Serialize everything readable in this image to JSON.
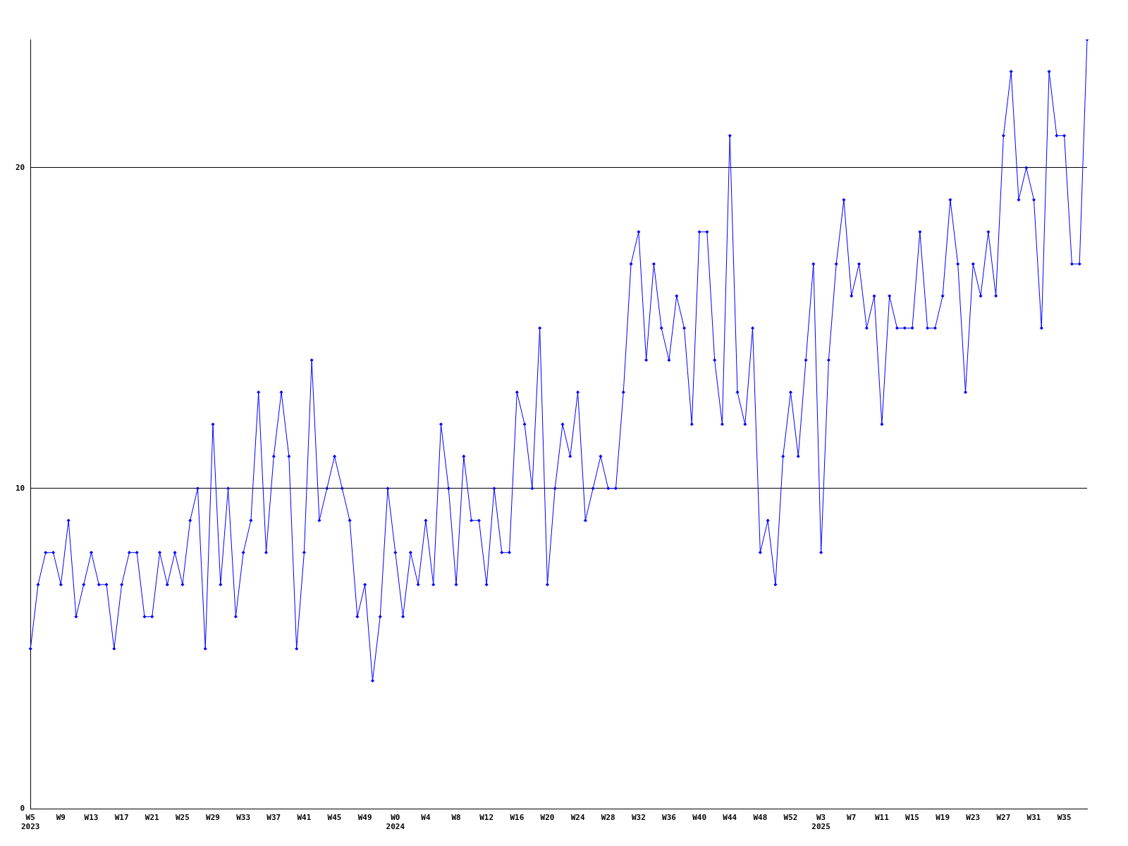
{
  "chart_data": {
    "type": "line",
    "categories": [
      "W5\n2023",
      null,
      null,
      null,
      "W9",
      null,
      null,
      null,
      "W13",
      null,
      null,
      null,
      "W17",
      null,
      null,
      null,
      "W21",
      null,
      null,
      null,
      "W25",
      null,
      null,
      null,
      "W29",
      null,
      null,
      null,
      "W33",
      null,
      null,
      null,
      "W37",
      null,
      null,
      null,
      "W41",
      null,
      null,
      null,
      "W45",
      null,
      null,
      null,
      "W49",
      null,
      null,
      null,
      "W0\n2024",
      null,
      null,
      null,
      "W4",
      null,
      null,
      null,
      "W8",
      null,
      null,
      null,
      "W12",
      null,
      null,
      null,
      "W16",
      null,
      null,
      null,
      "W20",
      null,
      null,
      null,
      "W24",
      null,
      null,
      null,
      "W28",
      null,
      null,
      null,
      "W32",
      null,
      null,
      null,
      "W36",
      null,
      null,
      null,
      "W40",
      null,
      null,
      null,
      "W44",
      null,
      null,
      null,
      "W48",
      null,
      null,
      null,
      "W52",
      null,
      null,
      null,
      "W3\n2025",
      null,
      null,
      null,
      "W7",
      null,
      null,
      null,
      "W11",
      null,
      null,
      null,
      "W15",
      null,
      null,
      null,
      "W19",
      null,
      null,
      null,
      "W23",
      null,
      null,
      null,
      "W27",
      null,
      null,
      null,
      "W31",
      null,
      null,
      null,
      "W35",
      null,
      null,
      null
    ],
    "series": [
      {
        "color": "#0000ff",
        "values": [
          5,
          7,
          8,
          8,
          7,
          9,
          6,
          7,
          8,
          7,
          7,
          5,
          7,
          8,
          8,
          6,
          6,
          8,
          7,
          8,
          7,
          9,
          10,
          5,
          12,
          7,
          10,
          6,
          8,
          9,
          13,
          8,
          11,
          13,
          11,
          5,
          8,
          14,
          9,
          10,
          11,
          10,
          9,
          6,
          7,
          4,
          6,
          10,
          8,
          6,
          8,
          7,
          9,
          7,
          12,
          10,
          7,
          11,
          9,
          9,
          7,
          10,
          8,
          8,
          13,
          12,
          10,
          15,
          7,
          10,
          12,
          11,
          13,
          9,
          10,
          11,
          10,
          10,
          13,
          17,
          18,
          14,
          17,
          15,
          14,
          16,
          15,
          12,
          18,
          18,
          14,
          12,
          21,
          13,
          12,
          15,
          8,
          9,
          7,
          11,
          13,
          11,
          14,
          17,
          8,
          14,
          17,
          19,
          16,
          17,
          15,
          16,
          12,
          16,
          15,
          15,
          15,
          18,
          15,
          15,
          16,
          19,
          17,
          13,
          17,
          16,
          18,
          16,
          21,
          23,
          19,
          20,
          19,
          15,
          23,
          21,
          21,
          17,
          17,
          24
        ]
      }
    ],
    "ylim": [
      0,
      24
    ],
    "yticks": [
      0,
      10,
      20
    ],
    "grid": "y",
    "marker": "diamond",
    "line_style": "solid",
    "legend": false
  }
}
